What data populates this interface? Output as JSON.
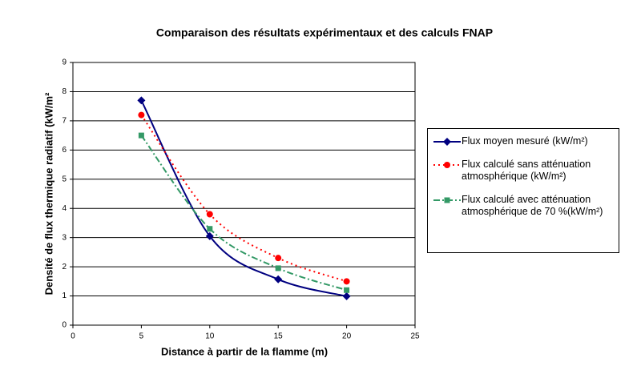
{
  "chart_data": {
    "type": "scatter",
    "title": "Comparaison des résultats expérimentaux et des calculs FNAP",
    "x_label": "Distance à partir de la flamme (m)",
    "y_label": "Densité de flux thermique radiatif (kW/m²",
    "x": [
      5,
      10,
      15,
      20
    ],
    "series": [
      {
        "name": "Flux moyen mesuré (kW/m²)",
        "color": "#000080",
        "marker": "diamond",
        "dash": "solid",
        "values": [
          7.7,
          3.05,
          1.57,
          0.99
        ]
      },
      {
        "name": "Flux calculé sans atténuation atmosphérique (kW/m²)",
        "color": "#ff0000",
        "marker": "circle",
        "dash": "dotted",
        "values": [
          7.2,
          3.8,
          2.3,
          1.5
        ]
      },
      {
        "name": "Flux calculé avec atténuation atmosphérique de 70 %(kW/m²)",
        "color": "#339966",
        "marker": "square",
        "dash": "dashdot",
        "values": [
          6.5,
          3.3,
          1.95,
          1.2
        ]
      }
    ],
    "xlim": [
      0,
      25
    ],
    "xticks": [
      0,
      5,
      10,
      15,
      20,
      25
    ],
    "ylim": [
      0,
      9
    ],
    "yticks": [
      0,
      1,
      2,
      3,
      4,
      5,
      6,
      7,
      8,
      9
    ],
    "grid": true,
    "legend": "right"
  }
}
